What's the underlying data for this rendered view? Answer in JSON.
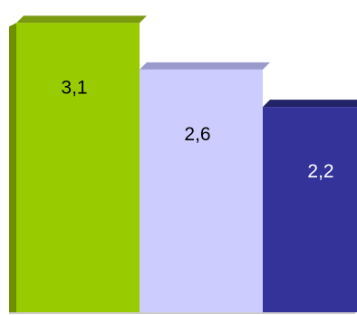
{
  "chart_data": {
    "type": "bar",
    "categories": [
      "",
      "",
      ""
    ],
    "values": [
      3.1,
      2.6,
      2.2
    ],
    "data_labels": [
      "3,1",
      "2,6",
      "2,2"
    ],
    "title": "",
    "xlabel": "",
    "ylabel": "",
    "ylim": [
      0,
      3.2
    ],
    "grid": false,
    "legend": "none",
    "style": "3d-bar",
    "colors": {
      "front": [
        "#99cc00",
        "#ccccff",
        "#333399"
      ],
      "top": [
        "#7a9a10",
        "#9a9acc",
        "#222266"
      ],
      "side": [
        "#6f8f00",
        "#aaaadd",
        "#1c1c5c"
      ]
    },
    "label_colors": [
      "#000000",
      "#000000",
      "#ffffff"
    ]
  }
}
